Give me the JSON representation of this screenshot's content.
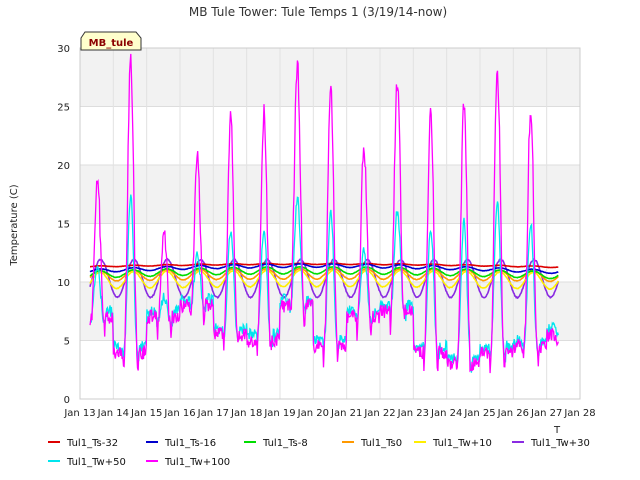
{
  "chart_data": {
    "type": "line",
    "title": "MB Tule Tower: Tule Temps 1 (3/19/14-now)",
    "ylabel": "Temperature (C)",
    "xlabel": "",
    "x_label_fragment": "T",
    "badge": "MB_tule",
    "ylim": [
      0,
      30
    ],
    "xlim": [
      13,
      28
    ],
    "y_ticks": [
      0,
      5,
      10,
      15,
      20,
      25,
      30
    ],
    "x_ticks": [
      13,
      14,
      15,
      16,
      17,
      18,
      19,
      20,
      21,
      22,
      23,
      24,
      25,
      26,
      27,
      28
    ],
    "x_tick_labels": [
      "Jan 13",
      "Jan 14",
      "Jan 15",
      "Jan 16",
      "Jan 17",
      "Jan 18",
      "Jan 19",
      "Jan 20",
      "Jan 21",
      "Jan 22",
      "Jan 23",
      "Jan 24",
      "Jan 25",
      "Jan 26",
      "Jan 27",
      "Jan 28"
    ],
    "grid": true,
    "legend_position": "bottom",
    "series": [
      {
        "name": "Tul1_Ts-32",
        "color": "#dd0000",
        "base": 11.3,
        "amp": 0.05,
        "noise": 0.02,
        "trend": 0.25,
        "peakSeed": 0
      },
      {
        "name": "Tul1_Ts-16",
        "color": "#0000cc",
        "base": 10.9,
        "amp": 0.15,
        "noise": 0.03,
        "trend": 0.5,
        "peakSeed": 0
      },
      {
        "name": "Tul1_Ts-8",
        "color": "#00dd00",
        "base": 10.6,
        "amp": 0.3,
        "noise": 0.04,
        "trend": 0.4,
        "peakSeed": 0
      },
      {
        "name": "Tul1_Ts0",
        "color": "#ff9900",
        "base": 10.5,
        "amp": 0.45,
        "noise": 0.05,
        "trend": 0.2,
        "peakSeed": 0
      },
      {
        "name": "Tul1_Tw+10",
        "color": "#ffee00",
        "base": 10.1,
        "amp": 0.7,
        "noise": 0.06,
        "trend": 0.2,
        "peakSeed": 0
      },
      {
        "name": "Tul1_Tw+30",
        "color": "#8a2be2",
        "base": 10.3,
        "amp": 1.8,
        "noise": 0.1,
        "trend": 0.0,
        "peakSeed": 1
      },
      {
        "name": "Tul1_Tw+50",
        "color": "#00e5ee",
        "base": 9.5,
        "amp": 5.5,
        "noise": 0.4,
        "trend": 0.0,
        "peakSeed": 2
      },
      {
        "name": "Tul1_Tw+100",
        "color": "#ff00ff",
        "base": 9.0,
        "amp": 9.0,
        "noise": 0.6,
        "trend": 0.0,
        "peakSeed": 3
      }
    ],
    "daily_peaks_tw100": [
      19,
      29,
      14.5,
      20.5,
      24,
      24.5,
      28.5,
      27,
      21.5,
      27,
      24.5,
      25.5,
      28,
      25,
      0
    ],
    "daily_lows_tw100": [
      5.5,
      2.5,
      5.5,
      6.5,
      4.0,
      3.5,
      6.5,
      3.0,
      5.5,
      6.0,
      2.5,
      1.5,
      2.5,
      3.0,
      4.0
    ]
  }
}
